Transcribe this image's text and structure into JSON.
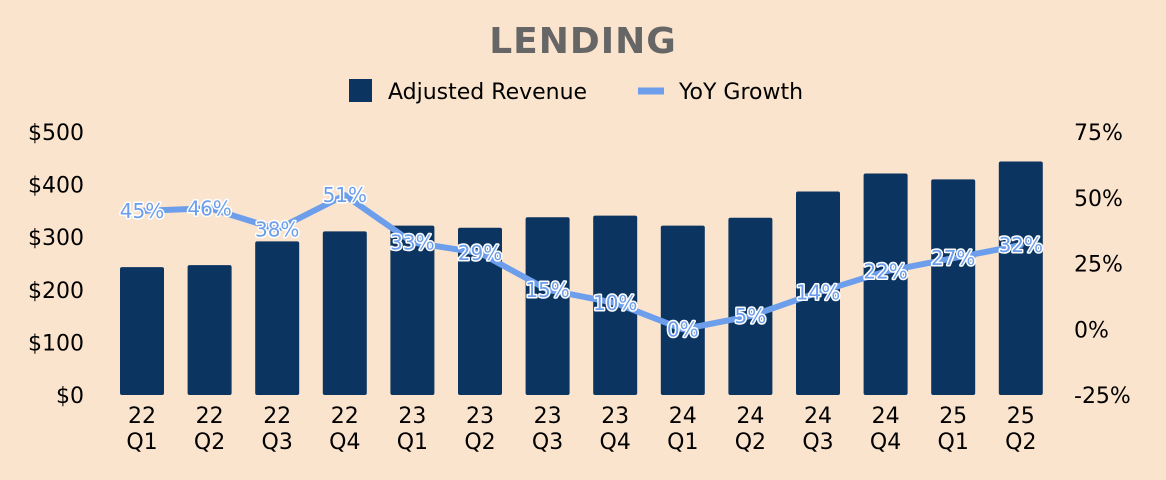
{
  "chart_data": {
    "type": "bar",
    "title": "LENDING",
    "categories": [
      [
        "22",
        "Q1"
      ],
      [
        "22",
        "Q2"
      ],
      [
        "22",
        "Q3"
      ],
      [
        "22",
        "Q4"
      ],
      [
        "23",
        "Q1"
      ],
      [
        "23",
        "Q2"
      ],
      [
        "23",
        "Q3"
      ],
      [
        "23",
        "Q4"
      ],
      [
        "24",
        "Q1"
      ],
      [
        "24",
        "Q2"
      ],
      [
        "24",
        "Q3"
      ],
      [
        "24",
        "Q4"
      ],
      [
        "25",
        "Q1"
      ],
      [
        "25",
        "Q2"
      ]
    ],
    "series": [
      {
        "name": "Adjusted Revenue",
        "type": "bar",
        "axis": "left",
        "color": "#0B3560",
        "values": [
          243,
          247,
          292,
          311,
          322,
          318,
          338,
          341,
          322,
          337,
          387,
          421,
          410,
          444
        ]
      },
      {
        "name": "YoY Growth",
        "type": "line",
        "axis": "right",
        "color": "#6D9EEB",
        "values": [
          45,
          46,
          38,
          51,
          33,
          29,
          15,
          10,
          0,
          5,
          14,
          22,
          27,
          32
        ],
        "labels": [
          "45%",
          "46%",
          "38%",
          "51%",
          "33%",
          "29%",
          "15%",
          "10%",
          "0%",
          "5%",
          "14%",
          "22%",
          "27%",
          "32%"
        ]
      }
    ],
    "y_left": {
      "ticks": [
        "$500",
        "$400",
        "$300",
        "$200",
        "$100",
        "$0"
      ],
      "range": [
        0,
        500
      ]
    },
    "y_right": {
      "ticks": [
        "75%",
        "50%",
        "25%",
        "0%",
        "-25%"
      ],
      "range": [
        -25,
        75
      ]
    },
    "legend": {
      "position": "top-center",
      "items": [
        "Adjusted Revenue",
        "YoY Growth"
      ]
    },
    "grid": false
  }
}
